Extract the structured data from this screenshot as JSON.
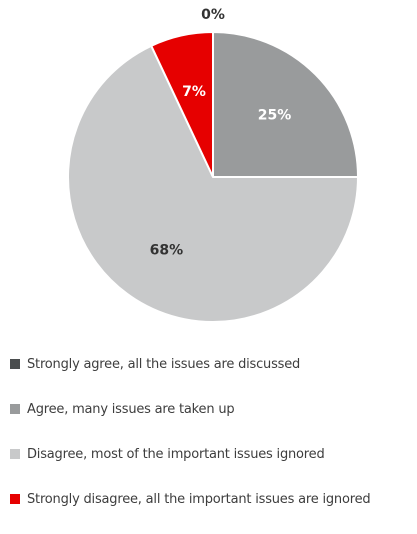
{
  "chart_data": {
    "type": "pie",
    "slices": [
      {
        "label": "Strongly agree, all the issues are discussed",
        "value": 0,
        "display": "0%",
        "color": "#4a4d4e",
        "label_color": "#333333"
      },
      {
        "label": "Agree, many issues are taken up",
        "value": 25,
        "display": "25%",
        "color": "#999b9c",
        "label_color": "#ffffff"
      },
      {
        "label": "Disagree, most of the important issues ignored",
        "value": 68,
        "display": "68%",
        "color": "#c8c9ca",
        "label_color": "#333333"
      },
      {
        "label": "Strongly disagree, all the important issues are ignored",
        "value": 7,
        "display": "7%",
        "color": "#e60000",
        "label_color": "#ffffff"
      }
    ],
    "legend_position": "bottom"
  }
}
